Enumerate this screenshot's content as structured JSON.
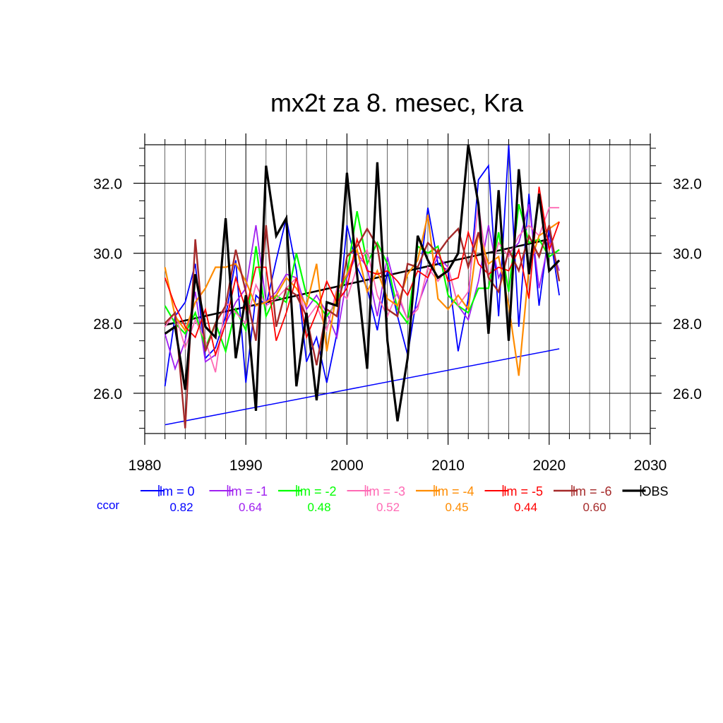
{
  "chart_data": {
    "type": "line",
    "title": "mx2t za 8. mesec, Kra",
    "xlabel": "",
    "ylabel": "",
    "xlim": [
      1980,
      2030
    ],
    "ylim": [
      24.85,
      33.1
    ],
    "x_ticks": [
      1980,
      1990,
      2000,
      2010,
      2020,
      2030
    ],
    "x_tick_labels": [
      "1980",
      "1990",
      "2000",
      "2010",
      "2020",
      "2030"
    ],
    "y_ticks": [
      26.0,
      28.0,
      30.0,
      32.0
    ],
    "y_tick_labels": [
      "26.0",
      "28.0",
      "30.0",
      "32.0"
    ],
    "grid": true,
    "legend_position": "bottom",
    "ccor_label": "ccor",
    "x": [
      1982,
      1983,
      1984,
      1985,
      1986,
      1987,
      1988,
      1989,
      1990,
      1991,
      1992,
      1993,
      1994,
      1995,
      1996,
      1997,
      1998,
      1999,
      2000,
      2001,
      2002,
      2003,
      2004,
      2005,
      2006,
      2007,
      2008,
      2009,
      2010,
      2011,
      2012,
      2013,
      2014,
      2015,
      2016,
      2017,
      2018,
      2019,
      2020,
      2021
    ],
    "series": [
      {
        "name": "lm = 0",
        "color": "#0000ff",
        "width": 1.8,
        "ccor": "0.82",
        "values": [
          26.2,
          28.2,
          28.6,
          29.7,
          27.0,
          27.3,
          28.2,
          29.8,
          26.3,
          28.8,
          28.5,
          29.8,
          31.0,
          29.5,
          26.9,
          27.6,
          26.3,
          27.7,
          30.8,
          29.6,
          29.0,
          27.8,
          29.5,
          28.2,
          27.1,
          28.9,
          31.3,
          29.7,
          29.5,
          27.2,
          28.7,
          32.1,
          32.5,
          28.2,
          33.1,
          27.9,
          31.7,
          28.5,
          30.7,
          28.8
        ]
      },
      {
        "name": "lm = -1",
        "color": "#a020f0",
        "width": 1.8,
        "ccor": "0.64",
        "values": [
          27.7,
          26.7,
          27.5,
          28.9,
          26.9,
          27.1,
          28.0,
          28.6,
          29.0,
          30.8,
          28.6,
          28.9,
          29.4,
          29.3,
          28.4,
          28.8,
          28.3,
          27.6,
          29.3,
          30.0,
          29.6,
          28.2,
          29.9,
          28.8,
          28.1,
          28.5,
          29.3,
          29.9,
          29.6,
          28.5,
          28.1,
          29.2,
          30.8,
          29.3,
          30.0,
          30.3,
          31.4,
          29.0,
          30.4,
          29.5
        ]
      },
      {
        "name": "lm = -2",
        "color": "#00ff00",
        "width": 2.2,
        "ccor": "0.48",
        "values": [
          28.5,
          28.0,
          27.7,
          28.3,
          27.3,
          28.0,
          27.2,
          28.4,
          27.8,
          30.2,
          28.2,
          28.8,
          28.6,
          30.0,
          28.8,
          28.6,
          28.2,
          28.6,
          29.4,
          31.2,
          29.7,
          30.3,
          29.7,
          28.4,
          28.0,
          30.2,
          30.0,
          30.2,
          28.8,
          28.5,
          28.3,
          29.0,
          29.0,
          30.6,
          28.9,
          31.4,
          30.3,
          30.4,
          29.9,
          30.1
        ]
      },
      {
        "name": "lm = -3",
        "color": "#ff69b4",
        "width": 1.8,
        "ccor": "0.52",
        "values": [
          27.9,
          28.3,
          27.3,
          28.1,
          27.5,
          26.6,
          28.6,
          28.3,
          28.0,
          29.1,
          28.5,
          28.7,
          29.0,
          29.3,
          28.1,
          28.5,
          27.8,
          29.0,
          28.7,
          29.6,
          30.1,
          28.8,
          28.2,
          28.9,
          28.1,
          28.4,
          29.6,
          29.2,
          29.6,
          28.5,
          28.9,
          31.4,
          29.3,
          30.3,
          29.9,
          30.5,
          30.8,
          30.5,
          31.3,
          31.3
        ]
      },
      {
        "name": "lm = -4",
        "color": "#ff8c00",
        "width": 2.2,
        "ccor": "0.45",
        "values": [
          29.6,
          28.2,
          27.8,
          28.6,
          29.0,
          29.6,
          29.6,
          29.7,
          29.2,
          28.5,
          28.6,
          28.8,
          29.3,
          29.0,
          28.5,
          29.7,
          27.2,
          28.9,
          29.4,
          30.1,
          28.9,
          29.5,
          28.7,
          28.5,
          29.4,
          29.8,
          31.1,
          28.7,
          28.4,
          28.8,
          28.4,
          30.6,
          29.7,
          29.9,
          28.5,
          26.5,
          29.6,
          30.5,
          30.7,
          30.9
        ]
      },
      {
        "name": "lm = -5",
        "color": "#ff0000",
        "width": 1.8,
        "ccor": "0.44",
        "values": [
          29.3,
          28.5,
          27.9,
          27.6,
          28.4,
          27.1,
          28.0,
          29.3,
          28.4,
          29.6,
          29.6,
          27.5,
          28.3,
          29.3,
          27.6,
          28.3,
          29.2,
          28.6,
          29.0,
          30.4,
          29.5,
          29.4,
          29.5,
          29.2,
          28.8,
          29.5,
          29.3,
          30.1,
          29.2,
          29.3,
          30.6,
          29.7,
          29.4,
          29.6,
          29.5,
          30.1,
          28.7,
          31.9,
          30.1,
          30.9
        ]
      },
      {
        "name": "lm = -6",
        "color": "#a52a2a",
        "width": 2.4,
        "ccor": "0.60",
        "values": [
          28.0,
          28.3,
          25.0,
          30.4,
          27.2,
          28.0,
          28.5,
          30.1,
          28.9,
          27.5,
          30.8,
          27.9,
          29.0,
          28.8,
          28.2,
          26.8,
          28.4,
          28.2,
          29.9,
          30.2,
          30.7,
          30.2,
          28.4,
          28.2,
          29.7,
          29.6,
          30.3,
          30.0,
          30.4,
          30.7,
          29.6,
          30.6,
          29.3,
          28.9,
          30.1,
          29.5,
          30.5,
          29.9,
          30.8,
          29.2
        ]
      },
      {
        "name": "OBS",
        "color": "#000000",
        "width": 3.2,
        "ccor": "",
        "values": [
          27.7,
          27.9,
          26.1,
          29.4,
          27.9,
          27.6,
          31.0,
          27.0,
          28.8,
          25.5,
          32.5,
          30.5,
          31.0,
          26.2,
          28.3,
          25.8,
          28.6,
          28.5,
          32.3,
          29.4,
          26.7,
          32.6,
          27.5,
          25.2,
          27.0,
          30.5,
          29.8,
          29.3,
          29.5,
          30.0,
          33.1,
          31.4,
          27.7,
          31.8,
          27.5,
          32.4,
          29.4,
          31.7,
          29.5,
          29.8
        ]
      }
    ],
    "trend_lines": [
      {
        "name": "OBS trend",
        "color": "#000000",
        "width": 2.6,
        "x": [
          1982,
          2020
        ],
        "y": [
          27.95,
          30.4
        ]
      },
      {
        "name": "lm = 0 trend",
        "color": "#0000ff",
        "width": 1.5,
        "x": [
          1982,
          2021
        ],
        "y": [
          25.1,
          27.27
        ]
      }
    ]
  }
}
